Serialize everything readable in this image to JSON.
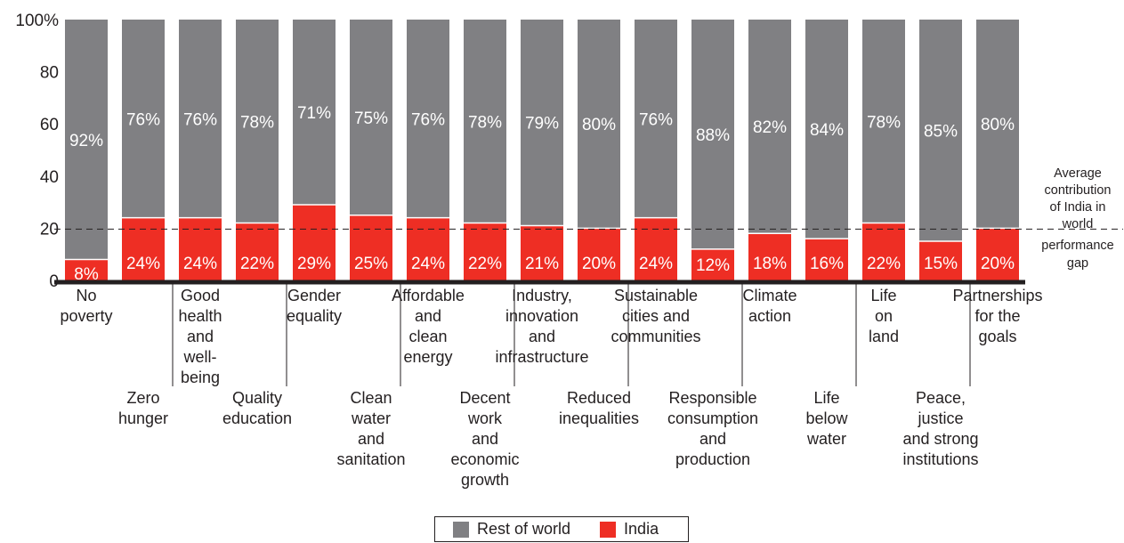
{
  "chart_data": {
    "type": "bar",
    "stacked": true,
    "title": "",
    "xlabel": "",
    "ylabel": "",
    "ylim": [
      0,
      100
    ],
    "yticks": [
      "0",
      "20",
      "40",
      "60",
      "80",
      "100%"
    ],
    "categories": [
      "No poverty",
      "Zero hunger",
      "Good health and well-being",
      "Quality education",
      "Gender equality",
      "Clean water and sanitation",
      "Affordable and clean energy",
      "Decent work and economic growth",
      "Industry, innovation and infrastructure",
      "Reduced inequalities",
      "Sustainable cities and communities",
      "Responsible consumption and production",
      "Climate action",
      "Life below water",
      "Life on land",
      "Peace, justice and strong institutions",
      "Partnerships for the goals"
    ],
    "category_lines": [
      [
        "No",
        "poverty"
      ],
      [
        "Zero",
        "hunger"
      ],
      [
        "Good",
        "health",
        "and",
        "well-",
        "being"
      ],
      [
        "Quality",
        "education"
      ],
      [
        "Gender",
        "equality"
      ],
      [
        "Clean",
        "water",
        "and",
        "sanitation"
      ],
      [
        "Affordable",
        "and",
        "clean",
        "energy"
      ],
      [
        "Decent",
        "work",
        "and",
        "economic",
        "growth"
      ],
      [
        "Industry,",
        "innovation",
        "and",
        "infrastructure"
      ],
      [
        "Reduced",
        "inequalities"
      ],
      [
        "Sustainable",
        "cities and",
        "communities"
      ],
      [
        "Responsible",
        "consumption",
        "and",
        "production"
      ],
      [
        "Climate",
        "action"
      ],
      [
        "Life",
        "below",
        "water"
      ],
      [
        "Life",
        "on",
        "land"
      ],
      [
        "Peace,",
        "justice",
        "and strong",
        "institutions"
      ],
      [
        "Partnerships",
        "for the",
        "goals"
      ]
    ],
    "series": [
      {
        "name": "India",
        "color": "#ee2e24",
        "values": [
          8,
          24,
          24,
          22,
          29,
          25,
          24,
          22,
          21,
          20,
          24,
          12,
          18,
          16,
          22,
          15,
          20
        ],
        "labels": [
          "8%",
          "24%",
          "24%",
          "22%",
          "29%",
          "25%",
          "24%",
          "22%",
          "21%",
          "20%",
          "24%",
          "12%",
          "18%",
          "16%",
          "22%",
          "15%",
          "20%"
        ]
      },
      {
        "name": "Rest of world",
        "color": "#808083",
        "values": [
          92,
          76,
          76,
          78,
          71,
          75,
          76,
          78,
          79,
          80,
          76,
          88,
          82,
          84,
          78,
          85,
          80
        ],
        "labels": [
          "92%",
          "76%",
          "76%",
          "78%",
          "71%",
          "75%",
          "76%",
          "78%",
          "79%",
          "80%",
          "76%",
          "88%",
          "82%",
          "84%",
          "78%",
          "85%",
          "80%"
        ]
      }
    ],
    "reference_line": {
      "value": 20,
      "style": "dashed",
      "label_lines": [
        "Average",
        "contribution",
        "of India in",
        "world",
        "performance",
        "gap"
      ]
    },
    "grid": false,
    "legend_position": "bottom"
  },
  "legend": {
    "rest_label": "Rest of world",
    "india_label": "India",
    "rest_color": "#808083",
    "india_color": "#ee2e24"
  }
}
